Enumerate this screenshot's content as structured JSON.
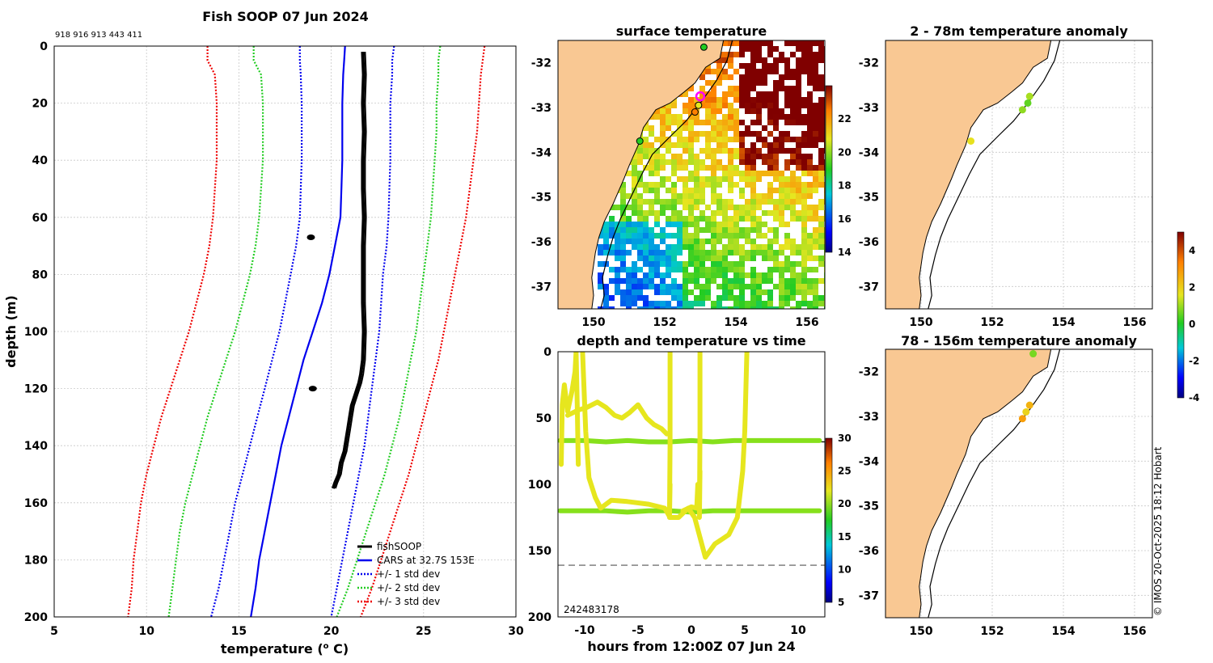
{
  "copyright": "© IMOS 20-Oct-2025 18:12 Hobart",
  "colors": {
    "land": "#f9c893",
    "coast": "#000000",
    "grid": "#c8c8c8"
  },
  "chart_data": [
    {
      "id": "profile",
      "type": "line",
      "title": "Fish SOOP 07 Jun 2024",
      "station_ids": "918 916 913 443 411",
      "xlabel": "temperature (",
      "xlabel_sup": "o",
      "xlabel_end": " C)",
      "ylabel": "depth (m)",
      "xlim": [
        5,
        30
      ],
      "ylim": [
        200,
        0
      ],
      "xticks": [
        5,
        10,
        15,
        20,
        25,
        30
      ],
      "yticks": [
        0,
        20,
        40,
        60,
        80,
        100,
        120,
        140,
        160,
        180,
        200
      ],
      "depth": [
        0,
        5,
        10,
        20,
        30,
        40,
        50,
        60,
        70,
        80,
        90,
        100,
        110,
        120,
        130,
        140,
        150,
        160,
        170,
        180,
        190,
        200
      ],
      "series": [
        {
          "name": "CARS at 32.7S 153E",
          "color": "#0000ee",
          "style": "solid",
          "width": 2.2,
          "values": [
            20.75,
            20.7,
            20.65,
            20.6,
            20.6,
            20.6,
            20.55,
            20.5,
            20.2,
            19.9,
            19.5,
            19.0,
            18.5,
            18.1,
            17.7,
            17.3,
            17.0,
            16.7,
            16.4,
            16.1,
            15.9,
            15.65
          ]
        },
        {
          "name": "+1 std",
          "color": "#0000ee",
          "style": "dotted",
          "width": 2.2,
          "values": [
            23.4,
            23.3,
            23.3,
            23.2,
            23.2,
            23.2,
            23.15,
            23.1,
            23.0,
            22.8,
            22.7,
            22.6,
            22.4,
            22.2,
            22.0,
            21.8,
            21.5,
            21.2,
            20.9,
            20.6,
            20.3,
            20.0
          ]
        },
        {
          "name": "-1 std",
          "color": "#0000ee",
          "style": "dotted",
          "width": 2.2,
          "values": [
            18.3,
            18.3,
            18.35,
            18.4,
            18.4,
            18.4,
            18.35,
            18.3,
            18.1,
            17.8,
            17.5,
            17.2,
            16.8,
            16.4,
            16.0,
            15.6,
            15.2,
            14.8,
            14.5,
            14.2,
            13.9,
            13.5
          ]
        },
        {
          "name": "+2 std",
          "color": "#22cc22",
          "style": "dotted",
          "width": 2.2,
          "values": [
            25.9,
            25.8,
            25.8,
            25.7,
            25.7,
            25.6,
            25.5,
            25.4,
            25.2,
            25.0,
            24.8,
            24.6,
            24.3,
            24.0,
            23.7,
            23.3,
            22.9,
            22.4,
            21.9,
            21.4,
            20.9,
            20.3
          ]
        },
        {
          "name": "-2 std",
          "color": "#22cc22",
          "style": "dotted",
          "width": 2.2,
          "values": [
            15.8,
            15.8,
            16.2,
            16.3,
            16.3,
            16.3,
            16.2,
            16.1,
            15.9,
            15.6,
            15.2,
            14.8,
            14.3,
            13.8,
            13.3,
            12.9,
            12.5,
            12.1,
            11.8,
            11.6,
            11.4,
            11.2
          ]
        },
        {
          "name": "+3 std",
          "color": "#ee0000",
          "style": "dotted",
          "width": 2.2,
          "values": [
            28.3,
            28.2,
            28.1,
            28.0,
            27.9,
            27.7,
            27.5,
            27.3,
            27.0,
            26.7,
            26.4,
            26.1,
            25.8,
            25.4,
            25.0,
            24.6,
            24.2,
            23.7,
            23.2,
            22.7,
            22.2,
            21.6
          ]
        },
        {
          "name": "-3 std",
          "color": "#ee0000",
          "style": "dotted",
          "width": 2.2,
          "values": [
            13.3,
            13.3,
            13.7,
            13.8,
            13.8,
            13.8,
            13.7,
            13.6,
            13.4,
            13.1,
            12.7,
            12.3,
            11.8,
            11.3,
            10.8,
            10.4,
            10.0,
            9.7,
            9.5,
            9.3,
            9.2,
            9.0
          ]
        }
      ],
      "fishsoop": {
        "name": "fishSOOP",
        "main": [
          [
            21.7,
            2
          ],
          [
            21.75,
            10
          ],
          [
            21.7,
            20
          ],
          [
            21.75,
            30
          ],
          [
            21.7,
            40
          ],
          [
            21.7,
            50
          ],
          [
            21.75,
            60
          ],
          [
            21.7,
            70
          ],
          [
            21.7,
            80
          ],
          [
            21.7,
            90
          ],
          [
            21.75,
            100
          ],
          [
            21.7,
            110
          ],
          [
            21.6,
            115
          ],
          [
            21.5,
            118
          ],
          [
            21.3,
            122
          ],
          [
            21.1,
            126
          ],
          [
            21.0,
            130
          ],
          [
            20.9,
            134
          ],
          [
            20.8,
            138
          ],
          [
            20.7,
            142
          ],
          [
            20.5,
            146
          ],
          [
            20.4,
            150
          ],
          [
            20.2,
            153
          ],
          [
            20.1,
            155
          ]
        ],
        "blobs": [
          [
            18.9,
            67
          ],
          [
            19.0,
            120
          ]
        ]
      },
      "legend": [
        "fishSOOP",
        "CARS at 32.7S 153E",
        "+/- 1 std dev",
        "+/- 2 std dev",
        "+/- 3 std dev"
      ]
    },
    {
      "id": "surface",
      "type": "heatmap",
      "title": "surface temperature",
      "xlim": [
        149,
        156.5
      ],
      "ylim": [
        -37.5,
        -31.5
      ],
      "xticks": [
        150,
        152,
        154,
        156
      ],
      "yticks": [
        -32,
        -33,
        -34,
        -35,
        -36,
        -37
      ],
      "colorbar": {
        "range": [
          14,
          24
        ],
        "ticks": [
          14,
          16,
          18,
          20,
          22
        ]
      },
      "stations": [
        [
          153.1,
          -31.65
        ],
        [
          153.0,
          -32.75
        ],
        [
          152.95,
          -32.95
        ],
        [
          152.85,
          -33.1
        ],
        [
          151.3,
          -33.75
        ]
      ]
    },
    {
      "id": "anomaly_shallow",
      "type": "scatter",
      "title": "2 - 78m temperature anomaly",
      "xlim": [
        149,
        156.5
      ],
      "ylim": [
        -37.5,
        -31.5
      ],
      "xticks": [
        150,
        152,
        154,
        156
      ],
      "yticks": [
        -32,
        -33,
        -34,
        -35,
        -36,
        -37
      ],
      "points": [
        [
          153.05,
          -32.75,
          1.6
        ],
        [
          153.0,
          -32.9,
          1.0
        ],
        [
          152.85,
          -33.05,
          1.4
        ],
        [
          151.4,
          -33.75,
          2.2
        ]
      ]
    },
    {
      "id": "anomaly_deep",
      "type": "scatter",
      "title": "78 - 156m temperature anomaly",
      "xlim": [
        149,
        156.5
      ],
      "ylim": [
        -37.5,
        -31.5
      ],
      "xticks": [
        150,
        152,
        154,
        156
      ],
      "yticks": [
        -32,
        -33,
        -34,
        -35,
        -36,
        -37
      ],
      "points": [
        [
          153.15,
          -31.6,
          1.2
        ],
        [
          153.05,
          -32.75,
          2.9
        ],
        [
          152.95,
          -32.9,
          2.4
        ],
        [
          152.85,
          -33.05,
          3.2
        ]
      ],
      "colorbar": {
        "range": [
          -4,
          5
        ],
        "ticks": [
          -4,
          -2,
          0,
          2,
          4
        ]
      }
    },
    {
      "id": "timeseries",
      "type": "scatter",
      "title": "depth and temperature vs time",
      "xlabel": "hours from 12:00Z 07 Jun 24",
      "xlim": [
        -12.5,
        12.5
      ],
      "ylim": [
        200,
        0
      ],
      "xticks": [
        -10,
        -5,
        0,
        5,
        10
      ],
      "yticks": [
        0,
        50,
        100,
        150,
        200
      ],
      "ref_lines": [
        68,
        161
      ],
      "corner_label": "242483178",
      "colorbar": {
        "range": [
          5,
          30
        ],
        "ticks": [
          5,
          10,
          15,
          20,
          25,
          30
        ]
      },
      "traces": [
        {
          "color": "#86e01c",
          "points": [
            [
              -12.3,
              67
            ],
            [
              -10,
              67
            ],
            [
              -8,
              68
            ],
            [
              -6,
              67
            ],
            [
              -4,
              68
            ],
            [
              -2,
              68
            ],
            [
              0,
              67
            ],
            [
              2,
              68
            ],
            [
              4,
              67
            ],
            [
              6,
              67
            ],
            [
              8,
              67
            ],
            [
              10,
              67
            ],
            [
              12,
              67
            ]
          ]
        },
        {
          "color": "#86e01c",
          "points": [
            [
              -12.3,
              120
            ],
            [
              -10,
              120
            ],
            [
              -8,
              120
            ],
            [
              -6,
              121
            ],
            [
              -4,
              120
            ],
            [
              -2,
              120
            ],
            [
              0,
              121
            ],
            [
              2,
              120
            ],
            [
              4,
              120
            ],
            [
              6,
              120
            ],
            [
              8,
              120
            ],
            [
              10,
              120
            ],
            [
              12,
              120
            ]
          ]
        },
        {
          "color": "#e6e61e",
          "points": [
            [
              -12.2,
              85
            ],
            [
              -12.1,
              40
            ],
            [
              -11.9,
              25
            ],
            [
              -11.6,
              45
            ],
            [
              -11.2,
              30
            ],
            [
              -10.9,
              15
            ],
            [
              -10.8,
              0
            ],
            [
              -10.7,
              40
            ],
            [
              -10.6,
              85
            ]
          ]
        },
        {
          "color": "#e6e61e",
          "points": [
            [
              -10.2,
              0
            ],
            [
              -9.9,
              60
            ],
            [
              -9.6,
              95
            ],
            [
              -9.0,
              110
            ],
            [
              -8.5,
              118
            ],
            [
              -7.5,
              112
            ],
            [
              -6,
              113
            ],
            [
              -4,
              115
            ],
            [
              -2.5,
              118
            ],
            [
              -2,
              125
            ],
            [
              -1.2,
              125
            ],
            [
              -0.3,
              118
            ],
            [
              0.3,
              125
            ],
            [
              0.8,
              140
            ],
            [
              1.3,
              155
            ],
            [
              2.2,
              145
            ],
            [
              3.5,
              138
            ],
            [
              4.3,
              125
            ],
            [
              4.8,
              90
            ],
            [
              5.0,
              60
            ],
            [
              5.2,
              0
            ]
          ]
        },
        {
          "color": "#e6e61e",
          "points": [
            [
              -11.6,
              48
            ],
            [
              -10.6,
              44
            ],
            [
              -9.8,
              42
            ],
            [
              -8.8,
              38
            ],
            [
              -8.0,
              42
            ],
            [
              -7.2,
              48
            ],
            [
              -6.5,
              50
            ],
            [
              -5.8,
              46
            ],
            [
              -5.0,
              40
            ],
            [
              -4.2,
              50
            ],
            [
              -3.5,
              55
            ],
            [
              -2.8,
              58
            ],
            [
              -2.3,
              62
            ]
          ]
        },
        {
          "color": "#e6e61e",
          "points": [
            [
              -2.0,
              0
            ],
            [
              -2.0,
              70
            ],
            [
              -2.05,
              125
            ],
            [
              -2.0,
              100
            ]
          ]
        },
        {
          "color": "#e6e61e",
          "points": [
            [
              0.8,
              0
            ],
            [
              0.8,
              60
            ],
            [
              0.75,
              125
            ],
            [
              0.8,
              90
            ]
          ]
        },
        {
          "color": "#e6e61e",
          "points": [
            [
              -0.8,
              120
            ],
            [
              0,
              117
            ],
            [
              0.5,
              118
            ],
            [
              0.6,
              100
            ]
          ]
        }
      ]
    }
  ]
}
